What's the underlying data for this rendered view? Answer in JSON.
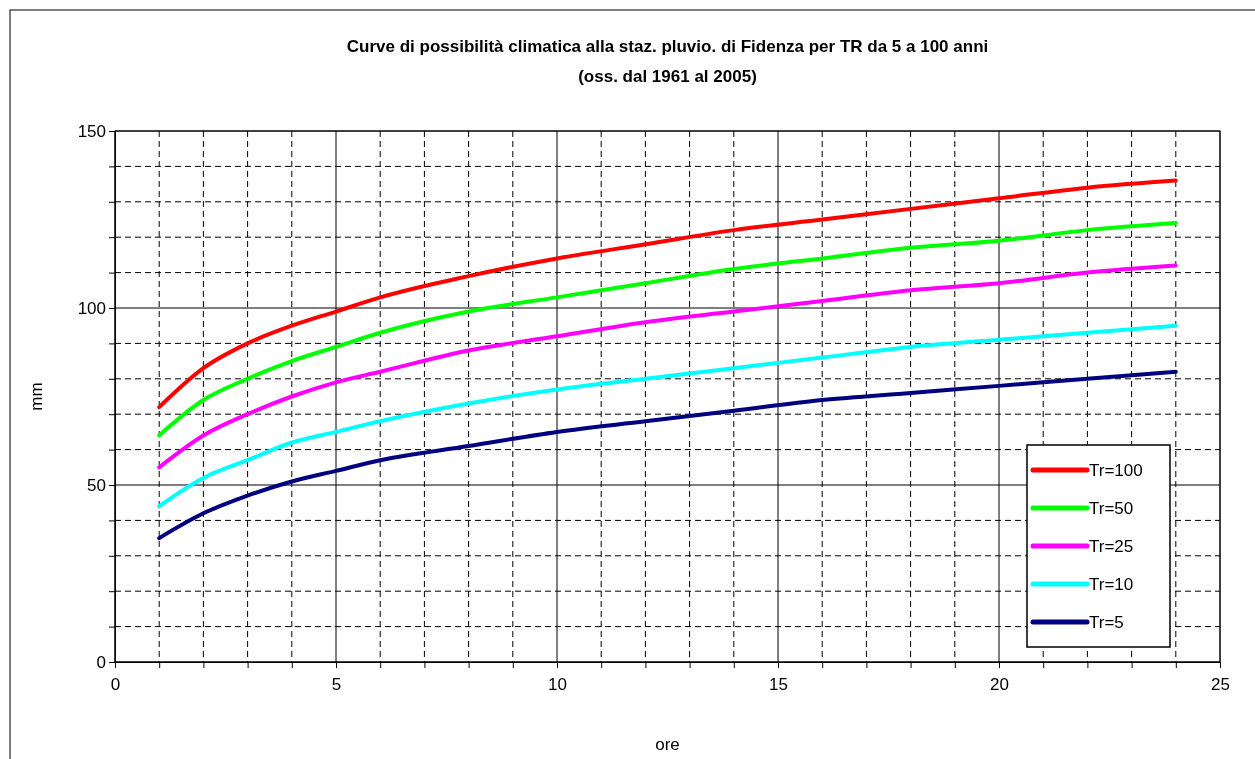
{
  "chart_data": {
    "type": "line",
    "title": "Curve di possibilità climatica alla staz. pluvio. di Fidenza  per TR da 5 a 100 anni",
    "subtitle": "(oss. dal 1961 al 2005)",
    "xlabel": "ore",
    "ylabel": "mm",
    "x": [
      1,
      2,
      3,
      4,
      5,
      6,
      8,
      10,
      12,
      14,
      16,
      18,
      20,
      22,
      24
    ],
    "series": [
      {
        "name": "Tr=100",
        "color": "#ff0000",
        "values": [
          72,
          83,
          90,
          95,
          99,
          103,
          109,
          114,
          118,
          122,
          125,
          128,
          131,
          134,
          136
        ]
      },
      {
        "name": "Tr=50",
        "color": "#00ff00",
        "values": [
          64,
          74,
          80,
          85,
          89,
          93,
          99,
          103,
          107,
          111,
          114,
          117,
          119,
          122,
          124
        ]
      },
      {
        "name": "Tr=25",
        "color": "#ff00ff",
        "values": [
          55,
          64,
          70,
          75,
          79,
          82,
          88,
          92,
          96,
          99,
          102,
          105,
          107,
          110,
          112
        ]
      },
      {
        "name": "Tr=10",
        "color": "#00ffff",
        "values": [
          44,
          52,
          57,
          62,
          65,
          68,
          73,
          77,
          80,
          83,
          86,
          89,
          91,
          93,
          95
        ]
      },
      {
        "name": "Tr=5",
        "color": "#000080",
        "values": [
          35,
          42,
          47,
          51,
          54,
          57,
          61,
          65,
          68,
          71,
          74,
          76,
          78,
          80,
          82
        ]
      }
    ],
    "xlim": [
      0,
      25
    ],
    "xticks": [
      0,
      {
        "value": 1,
        "label": null
      },
      {
        "value": 2,
        "label": null
      },
      {
        "value": 3,
        "label": null
      },
      {
        "value": 4,
        "label": null
      },
      5,
      {
        "value": 6,
        "label": null
      },
      {
        "value": 7,
        "label": null
      },
      {
        "value": 8,
        "label": null
      },
      {
        "value": 9,
        "label": null
      },
      10,
      {
        "value": 11,
        "label": null
      },
      {
        "value": 12,
        "label": null
      },
      {
        "value": 13,
        "label": null
      },
      {
        "value": 14,
        "label": null
      },
      15,
      {
        "value": 16,
        "label": null
      },
      {
        "value": 17,
        "label": null
      },
      {
        "value": 18,
        "label": null
      },
      {
        "value": 19,
        "label": null
      },
      20,
      {
        "value": 21,
        "label": null
      },
      {
        "value": 22,
        "label": null
      },
      {
        "value": 23,
        "label": null
      },
      {
        "value": 24,
        "label": null
      },
      25
    ],
    "ylim": [
      0,
      150
    ],
    "yticks": [
      0,
      {
        "value": 10,
        "label": null
      },
      {
        "value": 20,
        "label": null
      },
      {
        "value": 30,
        "label": null
      },
      {
        "value": 40,
        "label": null
      },
      50,
      {
        "value": 60,
        "label": null
      },
      {
        "value": 70,
        "label": null
      },
      {
        "value": 80,
        "label": null
      },
      {
        "value": 90,
        "label": null
      },
      100,
      {
        "value": 110,
        "label": null
      },
      {
        "value": 120,
        "label": null
      },
      {
        "value": 130,
        "label": null
      },
      {
        "value": 140,
        "label": null
      },
      150
    ],
    "grid": true,
    "legend": "bottom right",
    "marker": "none",
    "line_style": "solid"
  }
}
